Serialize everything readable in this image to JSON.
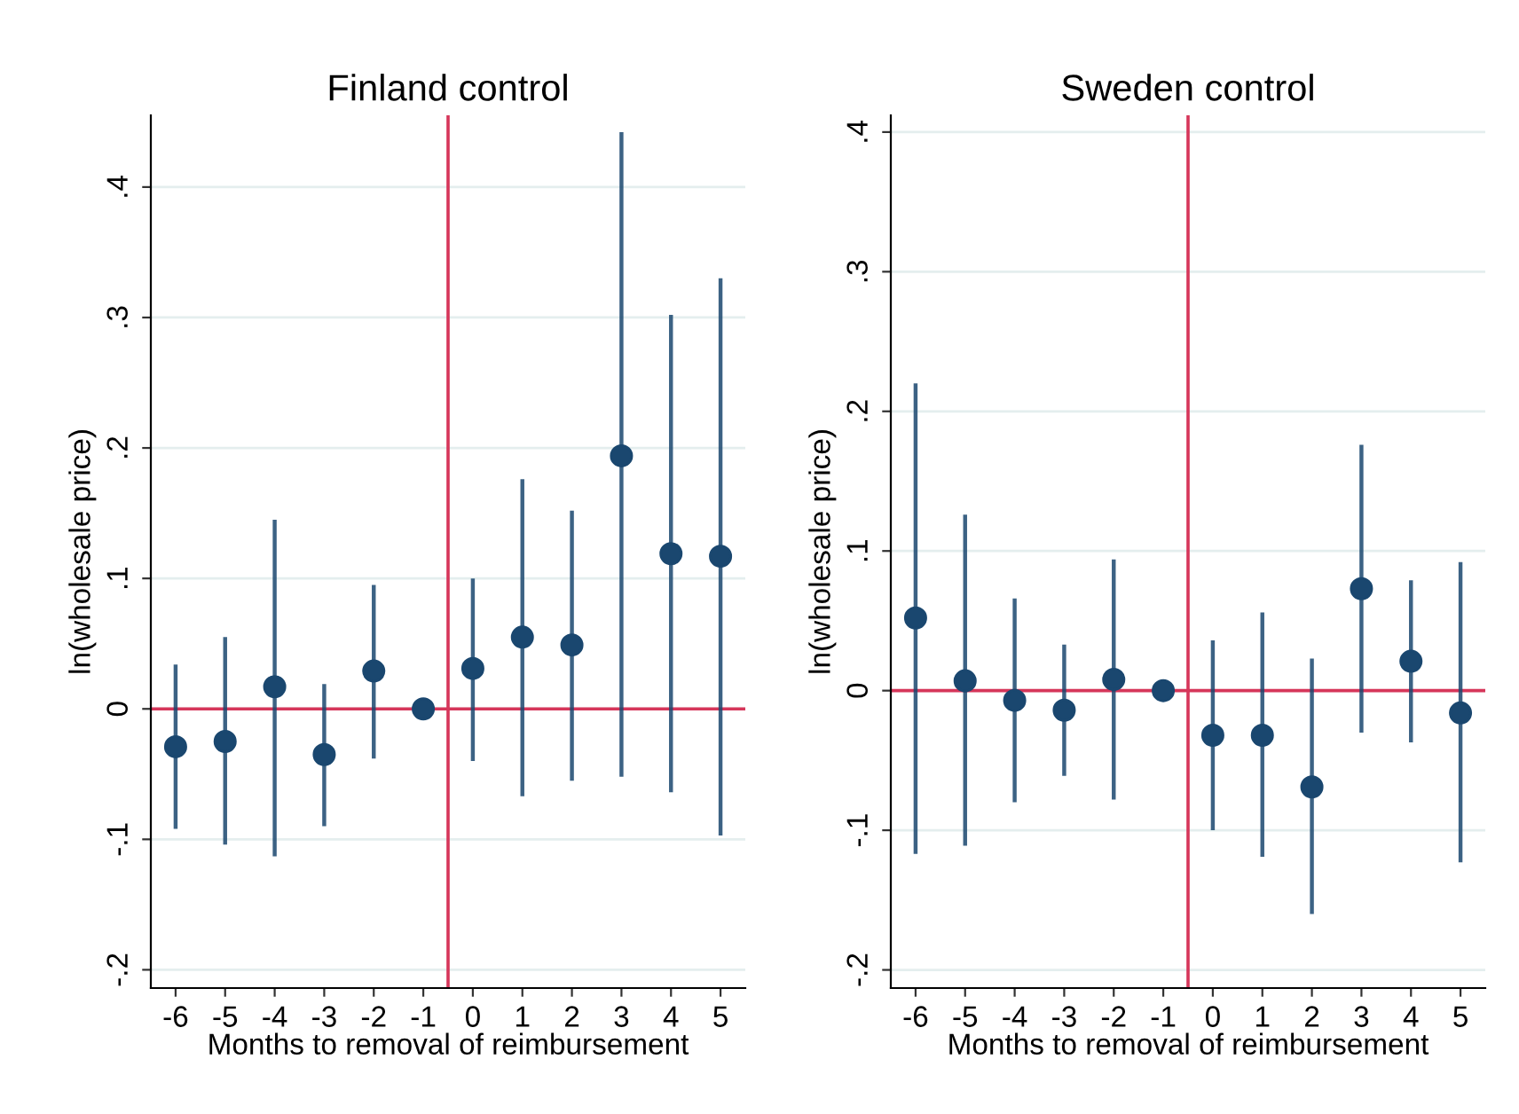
{
  "chart_data": [
    {
      "type": "scatter",
      "title": "Finland control",
      "xlabel": "Months to removal of reimbursement",
      "ylabel": "ln(wholesale price)",
      "x": [
        -6,
        -5,
        -4,
        -3,
        -2,
        -1,
        0,
        1,
        2,
        3,
        4,
        5
      ],
      "series": [
        {
          "color": "#1a476f",
          "values": [
            -0.029,
            -0.025,
            0.017,
            -0.035,
            0.029,
            0,
            0.031,
            0.055,
            0.049,
            0.194,
            0.119,
            0.117
          ],
          "errors": [
            [
              -0.092,
              0.034
            ],
            [
              -0.104,
              0.055
            ],
            [
              -0.113,
              0.145
            ],
            [
              -0.09,
              0.019
            ],
            [
              -0.038,
              0.095
            ],
            null,
            [
              -0.04,
              0.1
            ],
            [
              -0.067,
              0.176
            ],
            [
              -0.055,
              0.152
            ],
            [
              -0.052,
              0.442
            ],
            [
              -0.064,
              0.302
            ],
            [
              -0.097,
              0.33
            ]
          ]
        }
      ],
      "xlim": [
        -6.5,
        5.5
      ],
      "xticks": [
        -6,
        -5,
        -4,
        -3,
        -2,
        -1,
        0,
        1,
        2,
        3,
        4,
        5
      ],
      "ylim": [
        -0.214,
        0.455
      ],
      "yticks": [
        {
          "value": -0.2,
          "label": "-.2"
        },
        {
          "value": -0.1,
          "label": "-.1"
        },
        0,
        {
          "value": 0.1,
          "label": ".1"
        },
        {
          "value": 0.2,
          "label": ".2"
        },
        {
          "value": 0.3,
          "label": ".3"
        },
        {
          "value": 0.4,
          "label": ".4"
        }
      ],
      "ref_lines": [
        {
          "axis": "y",
          "value": 0,
          "color": "#d6365a"
        },
        {
          "axis": "x",
          "value": -0.5,
          "color": "#d6365a"
        }
      ],
      "grid": "y",
      "marker": "circle",
      "legend": false
    },
    {
      "type": "scatter",
      "title": "Sweden control",
      "xlabel": "Months to removal of reimbursement",
      "ylabel": "ln(wholesale price)",
      "x": [
        -6,
        -5,
        -4,
        -3,
        -2,
        -1,
        0,
        1,
        2,
        3,
        4,
        5
      ],
      "series": [
        {
          "color": "#1a476f",
          "values": [
            0.052,
            0.007,
            -0.007,
            -0.014,
            0.008,
            0,
            -0.032,
            -0.032,
            -0.069,
            0.073,
            0.021,
            -0.016
          ],
          "errors": [
            [
              -0.117,
              0.22
            ],
            [
              -0.111,
              0.126
            ],
            [
              -0.08,
              0.066
            ],
            [
              -0.061,
              0.033
            ],
            [
              -0.078,
              0.094
            ],
            null,
            [
              -0.1,
              0.036
            ],
            [
              -0.119,
              0.056
            ],
            [
              -0.16,
              0.023
            ],
            [
              -0.03,
              0.176
            ],
            [
              -0.037,
              0.079
            ],
            [
              -0.123,
              0.092
            ]
          ]
        }
      ],
      "xlim": [
        -6.5,
        5.5
      ],
      "xticks": [
        -6,
        -5,
        -4,
        -3,
        -2,
        -1,
        0,
        1,
        2,
        3,
        4,
        5
      ],
      "ylim": [
        -0.213,
        0.412
      ],
      "yticks": [
        {
          "value": -0.2,
          "label": "-.2"
        },
        {
          "value": -0.1,
          "label": "-.1"
        },
        0,
        {
          "value": 0.1,
          "label": ".1"
        },
        {
          "value": 0.2,
          "label": ".2"
        },
        {
          "value": 0.3,
          "label": ".3"
        },
        {
          "value": 0.4,
          "label": ".4"
        }
      ],
      "ref_lines": [
        {
          "axis": "y",
          "value": 0,
          "color": "#d6365a"
        },
        {
          "axis": "x",
          "value": -0.5,
          "color": "#d6365a"
        }
      ],
      "grid": "y",
      "marker": "circle",
      "legend": false
    }
  ]
}
